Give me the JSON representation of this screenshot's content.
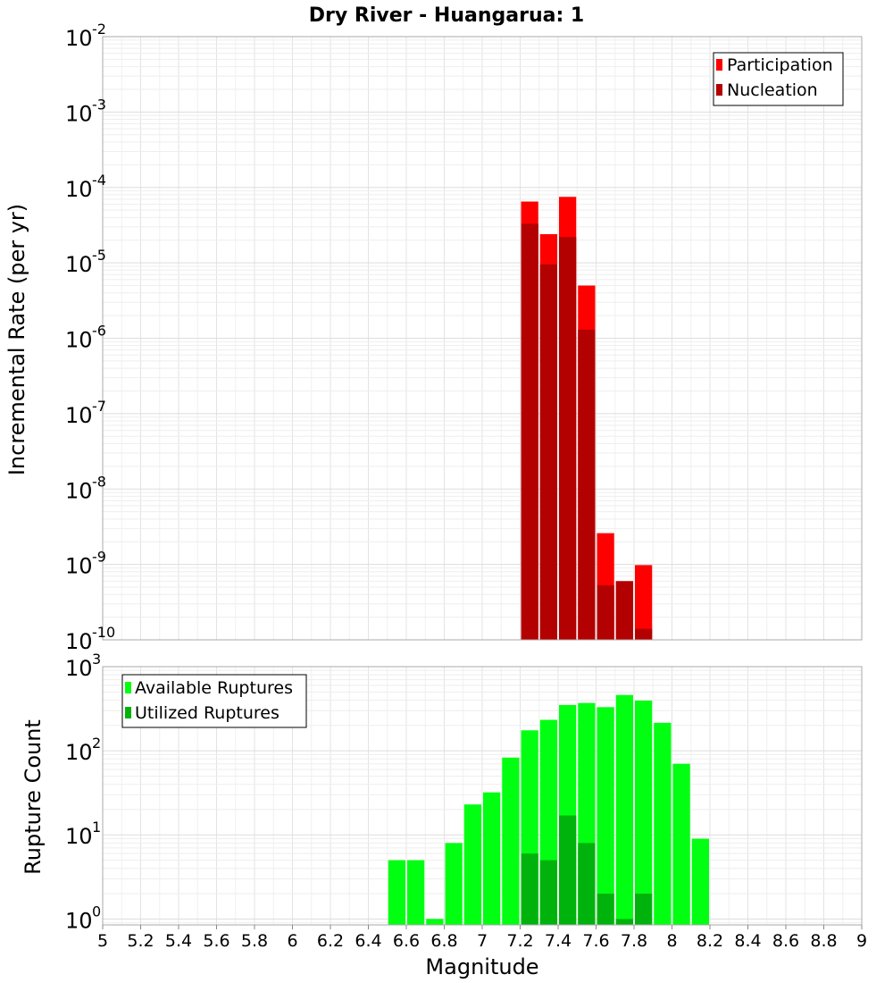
{
  "title": "Dry River - Huangarua: 1",
  "chart_data": [
    {
      "type": "bar",
      "id": "rate",
      "ylabel": "Incremental Rate (per yr)",
      "yscale": "log",
      "ylim": [
        1e-10,
        0.01
      ],
      "xlim": [
        5,
        9
      ],
      "y_tick_exponents": [
        -10,
        -9,
        -8,
        -7,
        -6,
        -5,
        -4,
        -3,
        -2
      ],
      "legend_position": "top-right",
      "bin_width": 0.1,
      "series": [
        {
          "name": "Participation",
          "color": "#ff0000",
          "x": [
            7.25,
            7.35,
            7.45,
            7.55,
            7.65,
            7.75,
            7.85
          ],
          "values": [
            6.5e-05,
            2.4e-05,
            7.5e-05,
            5e-06,
            2.6e-09,
            6e-10,
            9.8e-10
          ]
        },
        {
          "name": "Nucleation",
          "color": "#b30000",
          "x": [
            7.25,
            7.35,
            7.45,
            7.55,
            7.65,
            7.75,
            7.85
          ],
          "values": [
            3.3e-05,
            9.5e-06,
            2.2e-05,
            1.3e-06,
            5.3e-10,
            6e-10,
            1.4e-10
          ]
        }
      ]
    },
    {
      "type": "bar",
      "id": "count",
      "ylabel": "Rupture Count",
      "yscale": "log",
      "ylim": [
        0.85,
        1000
      ],
      "xlim": [
        5,
        9
      ],
      "y_tick_exponents": [
        0,
        1,
        2,
        3
      ],
      "legend_position": "top-left",
      "bin_width": 0.1,
      "series": [
        {
          "name": "Available Ruptures",
          "color": "#00ff11",
          "x": [
            6.55,
            6.65,
            6.75,
            6.85,
            6.95,
            7.05,
            7.15,
            7.25,
            7.35,
            7.45,
            7.55,
            7.65,
            7.75,
            7.85,
            7.95,
            8.05,
            8.15
          ],
          "values": [
            5,
            5,
            1,
            8,
            23,
            32,
            83,
            175,
            233,
            350,
            370,
            330,
            460,
            395,
            215,
            70,
            9
          ]
        },
        {
          "name": "Utilized Ruptures",
          "color": "#00b30c",
          "x": [
            7.25,
            7.35,
            7.45,
            7.55,
            7.65,
            7.75,
            7.85
          ],
          "values": [
            6,
            5,
            17,
            8,
            2,
            1,
            2
          ]
        }
      ]
    }
  ],
  "xlabel": "Magnitude",
  "x_ticks": [
    "5",
    "5.2",
    "5.4",
    "5.6",
    "5.8",
    "6",
    "6.2",
    "6.4",
    "6.6",
    "6.8",
    "7",
    "7.2",
    "7.4",
    "7.6",
    "7.8",
    "8",
    "8.2",
    "8.4",
    "8.6",
    "8.8",
    "9"
  ],
  "grid": true
}
